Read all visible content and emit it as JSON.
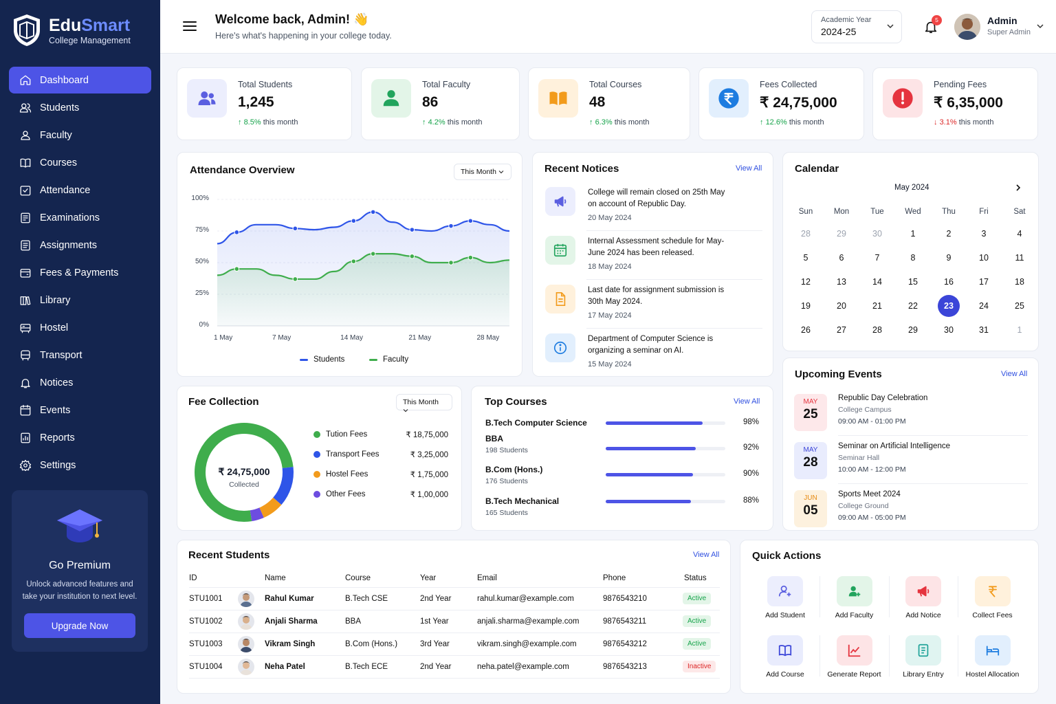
{
  "brand": {
    "name_a": "Edu",
    "name_b": "Smart",
    "subtitle": "College Management"
  },
  "nav": [
    {
      "label": "Dashboard",
      "icon": "home-icon",
      "active": true
    },
    {
      "label": "Students",
      "icon": "users-icon"
    },
    {
      "label": "Faculty",
      "icon": "user-icon"
    },
    {
      "label": "Courses",
      "icon": "book-icon"
    },
    {
      "label": "Attendance",
      "icon": "check-calendar-icon"
    },
    {
      "label": "Examinations",
      "icon": "exam-icon"
    },
    {
      "label": "Assignments",
      "icon": "assignment-icon"
    },
    {
      "label": "Fees & Payments",
      "icon": "wallet-icon"
    },
    {
      "label": "Library",
      "icon": "library-icon"
    },
    {
      "label": "Hostel",
      "icon": "bed-icon"
    },
    {
      "label": "Transport",
      "icon": "bus-icon"
    },
    {
      "label": "Notices",
      "icon": "bell-icon"
    },
    {
      "label": "Events",
      "icon": "calendar-icon"
    },
    {
      "label": "Reports",
      "icon": "report-icon"
    },
    {
      "label": "Settings",
      "icon": "gear-icon"
    }
  ],
  "premium": {
    "title": "Go Premium",
    "text": "Unlock advanced features and take your institution to next level.",
    "button": "Upgrade Now"
  },
  "header": {
    "welcome": "Welcome back, Admin! 👋",
    "subtitle": "Here's what's happening in your college today.",
    "academic_label": "Academic Year",
    "academic_value": "2024-25",
    "notifications": "5",
    "user_name": "Admin",
    "user_role": "Super Admin"
  },
  "stats": [
    {
      "label": "Total Students",
      "value": "1,245",
      "change": "8.5%",
      "suffix": "this month",
      "dir": "up",
      "color": "#5b5fe0",
      "bg": "#eceefd",
      "icon": "students-icon"
    },
    {
      "label": "Total Faculty",
      "value": "86",
      "change": "4.2%",
      "suffix": "this month",
      "dir": "up",
      "color": "#22a45d",
      "bg": "#e3f5e8",
      "icon": "faculty-icon"
    },
    {
      "label": "Total Courses",
      "value": "48",
      "change": "6.3%",
      "suffix": "this month",
      "dir": "up",
      "color": "#f29b1c",
      "bg": "#fff1dc",
      "icon": "open-book-icon"
    },
    {
      "label": "Fees Collected",
      "value": "₹ 24,75,000",
      "change": "12.6%",
      "suffix": "this month",
      "dir": "up",
      "color": "#1d7ce0",
      "bg": "#e2effd",
      "icon": "rupee-icon"
    },
    {
      "label": "Pending Fees",
      "value": "₹ 6,35,000",
      "change": "3.1%",
      "suffix": "this month",
      "dir": "down",
      "color": "#e5343f",
      "bg": "#fde4e6",
      "icon": "alert-icon"
    }
  ],
  "attendance": {
    "title": "Attendance Overview",
    "filter": "This Month",
    "legend_students": "Students",
    "legend_faculty": "Faculty"
  },
  "chart_data": {
    "type": "area",
    "title": "Attendance Overview",
    "x": [
      "1 May",
      "3 May",
      "5 May",
      "7 May",
      "9 May",
      "11 May",
      "13 May",
      "15 May",
      "17 May",
      "19 May",
      "21 May",
      "23 May",
      "25 May",
      "27 May",
      "29 May",
      "31 May"
    ],
    "x_ticks": [
      "1 May",
      "7 May",
      "14 May",
      "21 May",
      "28 May"
    ],
    "y_ticks": [
      "100%",
      "75%",
      "50%",
      "25%",
      "0%"
    ],
    "ylim": [
      0,
      100
    ],
    "series": [
      {
        "name": "Students",
        "color": "#2f55e8",
        "values": [
          65,
          74,
          80,
          80,
          77,
          76,
          78,
          83,
          90,
          82,
          76,
          75,
          79,
          83,
          80,
          75
        ]
      },
      {
        "name": "Faculty",
        "color": "#3fad4c",
        "values": [
          40,
          45,
          45,
          40,
          37,
          37,
          43,
          51,
          57,
          57,
          55,
          50,
          50,
          54,
          50,
          52
        ]
      }
    ]
  },
  "notices": {
    "title": "Recent Notices",
    "view_all": "View All",
    "items": [
      {
        "text": "College will remain closed on 25th May on account of Republic Day.",
        "date": "20 May 2024",
        "icon": "megaphone-icon",
        "color": "#5b5fe0",
        "bg": "#eceefd"
      },
      {
        "text": "Internal Assessment schedule for May-June 2024 has been released.",
        "date": "18 May 2024",
        "icon": "calendar-icon",
        "color": "#22a45d",
        "bg": "#e3f5e8"
      },
      {
        "text": "Last date for assignment submission is 30th May 2024.",
        "date": "17 May 2024",
        "icon": "document-icon",
        "color": "#f29b1c",
        "bg": "#fff1dc"
      },
      {
        "text": "Department of Computer Science is organizing a seminar on AI.",
        "date": "15 May 2024",
        "icon": "info-icon",
        "color": "#1d7ce0",
        "bg": "#e2effd"
      }
    ]
  },
  "calendar": {
    "title": "Calendar",
    "month": "May 2024",
    "weekdays": [
      "Sun",
      "Mon",
      "Tue",
      "Wed",
      "Thu",
      "Fri",
      "Sat"
    ],
    "days": [
      "28",
      "29",
      "30",
      "1",
      "2",
      "3",
      "4",
      "5",
      "6",
      "7",
      "8",
      "9",
      "10",
      "11",
      "12",
      "13",
      "14",
      "15",
      "16",
      "17",
      "18",
      "19",
      "20",
      "21",
      "22",
      "23",
      "24",
      "25",
      "26",
      "27",
      "28",
      "29",
      "30",
      "31",
      "1"
    ],
    "muted": [
      0,
      1,
      2,
      34
    ],
    "selected": 25
  },
  "events": {
    "title": "Upcoming Events",
    "view_all": "View All",
    "items": [
      {
        "month": "MAY",
        "day": "25",
        "title": "Republic Day Celebration",
        "location": "College Campus",
        "time": "09:00 AM - 01:00 PM",
        "color": "#e5343f",
        "bg": "#fde8ea"
      },
      {
        "month": "MAY",
        "day": "28",
        "title": "Seminar on Artificial Intelligence",
        "location": "Seminar Hall",
        "time": "10:00 AM - 12:00 PM",
        "color": "#3b45d8",
        "bg": "#e9ecfd"
      },
      {
        "month": "JUN",
        "day": "05",
        "title": "Sports Meet 2024",
        "location": "College Ground",
        "time": "09:00 AM - 05:00 PM",
        "color": "#e68a12",
        "bg": "#fdf1de"
      }
    ]
  },
  "fees": {
    "title": "Fee Collection",
    "filter": "This Month",
    "center_value": "₹ 24,75,000",
    "center_label": "Collected",
    "items": [
      {
        "label": "Tution Fees",
        "amount": "₹ 18,75,000",
        "value": 1875000,
        "color": "#3fad4c"
      },
      {
        "label": "Transport Fees",
        "amount": "₹ 3,25,000",
        "value": 325000,
        "color": "#2f55e8"
      },
      {
        "label": "Hostel Fees",
        "amount": "₹ 1,75,000",
        "value": 175000,
        "color": "#f29b1c"
      },
      {
        "label": "Other Fees",
        "amount": "₹ 1,00,000",
        "value": 100000,
        "color": "#6d4de0"
      }
    ]
  },
  "courses": {
    "title": "Top Courses",
    "view_all": "View All",
    "items": [
      {
        "name": "B.Tech Computer Science",
        "students": "",
        "pct": "98%",
        "value": 0.81
      },
      {
        "name": "BBA",
        "students": "198 Students",
        "pct": "92%",
        "value": 0.75
      },
      {
        "name": "B.Com (Hons.)",
        "students": "176 Students",
        "pct": "90%",
        "value": 0.73
      },
      {
        "name": "B.Tech Mechanical",
        "students": "165 Students",
        "pct": "88%",
        "value": 0.71
      }
    ]
  },
  "students": {
    "title": "Recent Students",
    "view_all": "View All",
    "headers": [
      "ID",
      "Name",
      "Course",
      "Year",
      "Email",
      "Phone",
      "Status"
    ],
    "rows": [
      {
        "id": "STU1001",
        "name": "Rahul Kumar",
        "course": "B.Tech CSE",
        "year": "2nd Year",
        "email": "rahul.kumar@example.com",
        "phone": "9876543210",
        "status": "Active"
      },
      {
        "id": "STU1002",
        "name": "Anjali Sharma",
        "course": "BBA",
        "year": "1st Year",
        "email": "anjali.sharma@example.com",
        "phone": "9876543211",
        "status": "Active"
      },
      {
        "id": "STU1003",
        "name": "Vikram Singh",
        "course": "B.Com (Hons.)",
        "year": "3rd Year",
        "email": "vikram.singh@example.com",
        "phone": "9876543212",
        "status": "Active"
      },
      {
        "id": "STU1004",
        "name": "Neha Patel",
        "course": "B.Tech ECE",
        "year": "2nd Year",
        "email": "neha.patel@example.com",
        "phone": "9876543213",
        "status": "Inactive"
      }
    ]
  },
  "quick": {
    "title": "Quick Actions",
    "items": [
      {
        "label": "Add Student",
        "icon": "add-student-icon",
        "color": "#5b5fe0",
        "bg": "#eceefd"
      },
      {
        "label": "Add Faculty",
        "icon": "add-faculty-icon",
        "color": "#22a45d",
        "bg": "#e3f5e8"
      },
      {
        "label": "Add Notice",
        "icon": "megaphone-icon",
        "color": "#e5343f",
        "bg": "#fde4e6"
      },
      {
        "label": "Collect Fees",
        "icon": "rupee-icon",
        "color": "#f29b1c",
        "bg": "#fff1dc"
      },
      {
        "label": "Add Course",
        "icon": "book-icon",
        "color": "#3b45d8",
        "bg": "#e9ecfd"
      },
      {
        "label": "Generate Report",
        "icon": "chart-icon",
        "color": "#e5343f",
        "bg": "#fde4e6"
      },
      {
        "label": "Library Entry",
        "icon": "library-entry-icon",
        "color": "#22a49a",
        "bg": "#e0f4f1"
      },
      {
        "label": "Hostel Allocation",
        "icon": "hostel-icon",
        "color": "#1d7ce0",
        "bg": "#e2effd"
      }
    ]
  }
}
